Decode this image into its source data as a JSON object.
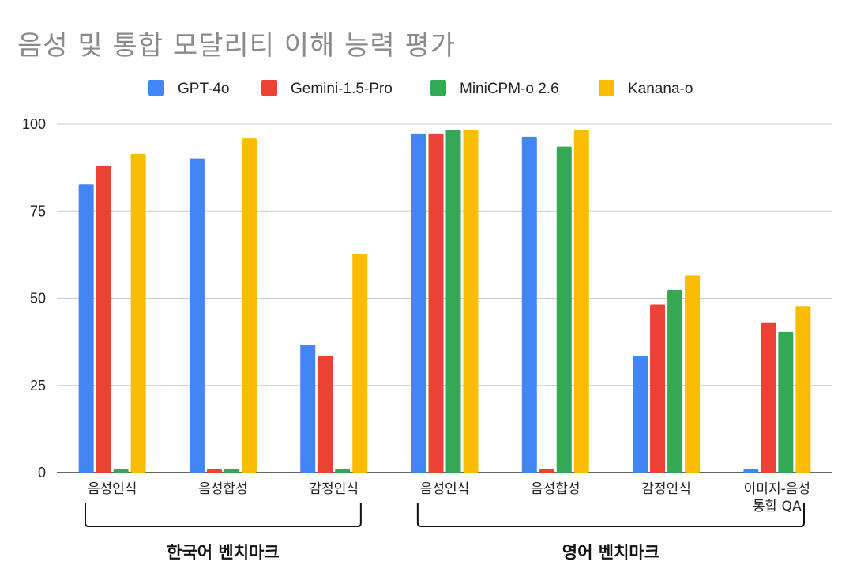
{
  "chart_data": {
    "type": "bar",
    "title": "음성 및 통합 모달리티 이해 능력 평가",
    "categories": [
      "음성인식",
      "음성합성",
      "감정인식",
      "음성인식",
      "음성합성",
      "감정인식",
      "이미지-음성 통합 QA"
    ],
    "category_lines": [
      [
        "음성인식"
      ],
      [
        "음성합성"
      ],
      [
        "감정인식"
      ],
      [
        "음성인식"
      ],
      [
        "음성합성"
      ],
      [
        "감정인식"
      ],
      [
        "이미지-음성",
        "통합 QA"
      ]
    ],
    "groups": [
      {
        "label": "한국어 벤치마크",
        "categories": [
          0,
          1,
          2
        ]
      },
      {
        "label": "영어 벤치마크",
        "categories": [
          3,
          4,
          5,
          6
        ]
      }
    ],
    "series": [
      {
        "name": "GPT-4o",
        "color": "#4285F4",
        "values": [
          82.7,
          90.1,
          36.7,
          97.3,
          96.4,
          33.4,
          1
        ]
      },
      {
        "name": "Gemini-1.5-Pro",
        "color": "#EA4335",
        "values": [
          88.0,
          1,
          33.4,
          97.3,
          1,
          48.2,
          42.9
        ]
      },
      {
        "name": "MiniCPM-o 2.6",
        "color": "#34A853",
        "values": [
          1,
          1,
          1,
          98.4,
          93.5,
          52.4,
          40.4
        ]
      },
      {
        "name": "Kanana-o",
        "color": "#FBBC04",
        "values": [
          91.4,
          95.9,
          62.7,
          98.4,
          98.4,
          56.6,
          47.8
        ]
      }
    ],
    "ylim": [
      0,
      100
    ],
    "yticks": [
      "0",
      "25",
      "50",
      "75",
      "100"
    ],
    "grid": true,
    "legend_position": "top"
  }
}
